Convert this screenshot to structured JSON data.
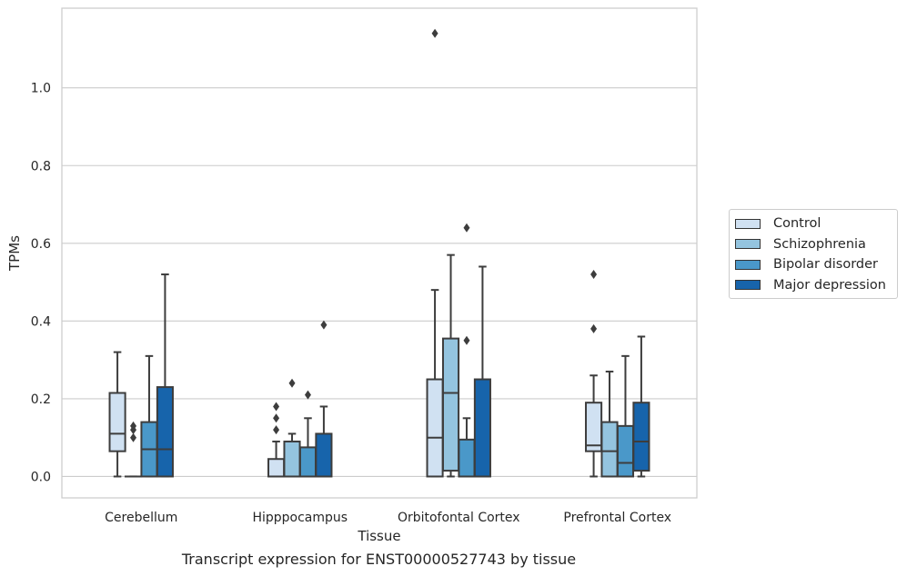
{
  "chart_data": {
    "type": "box",
    "xlabel": "Tissue",
    "ylabel": "TPMs",
    "caption": "Transcript expression for ENST00000527743 by tissue",
    "ylim": [
      -0.055,
      1.205
    ],
    "yticks": [
      0.0,
      0.2,
      0.4,
      0.6,
      0.8,
      1.0
    ],
    "ytick_labels": [
      "0.0",
      "0.2",
      "0.4",
      "0.6",
      "0.8",
      "1.0"
    ],
    "grid": true,
    "legend_position": "right",
    "categories": [
      "Cerebellum",
      "Hipppocampus",
      "Orbitofontal Cortex",
      "Prefrontal Cortex"
    ],
    "series": [
      {
        "name": "Control",
        "color": "#d0e1f2",
        "boxes": [
          {
            "q1": 0.065,
            "median": 0.11,
            "q3": 0.215,
            "whislo": 0.0,
            "whishi": 0.32,
            "fliers": []
          },
          {
            "q1": 0.0,
            "median": 0.0,
            "q3": 0.045,
            "whislo": 0.0,
            "whishi": 0.09,
            "fliers": [
              0.12,
              0.15,
              0.18
            ]
          },
          {
            "q1": 0.0,
            "median": 0.1,
            "q3": 0.25,
            "whislo": 0.0,
            "whishi": 0.48,
            "fliers": [
              1.14
            ]
          },
          {
            "q1": 0.065,
            "median": 0.08,
            "q3": 0.19,
            "whislo": 0.0,
            "whishi": 0.26,
            "fliers": [
              0.38,
              0.52
            ]
          }
        ]
      },
      {
        "name": "Schizophrenia",
        "color": "#94c4df",
        "boxes": [
          {
            "q1": 0.0,
            "median": 0.0,
            "q3": 0.0,
            "whislo": 0.0,
            "whishi": 0.0,
            "fliers": [
              0.1,
              0.12,
              0.13
            ]
          },
          {
            "q1": 0.0,
            "median": 0.0,
            "q3": 0.09,
            "whislo": 0.0,
            "whishi": 0.11,
            "fliers": [
              0.24
            ]
          },
          {
            "q1": 0.015,
            "median": 0.215,
            "q3": 0.355,
            "whislo": 0.0,
            "whishi": 0.57,
            "fliers": []
          },
          {
            "q1": 0.0,
            "median": 0.065,
            "q3": 0.14,
            "whislo": 0.0,
            "whishi": 0.27,
            "fliers": []
          }
        ]
      },
      {
        "name": "Bipolar disorder",
        "color": "#4a98c9",
        "boxes": [
          {
            "q1": 0.0,
            "median": 0.07,
            "q3": 0.14,
            "whislo": 0.0,
            "whishi": 0.31,
            "fliers": []
          },
          {
            "q1": 0.0,
            "median": 0.0,
            "q3": 0.075,
            "whislo": 0.0,
            "whishi": 0.15,
            "fliers": [
              0.21
            ]
          },
          {
            "q1": 0.0,
            "median": 0.0,
            "q3": 0.095,
            "whislo": 0.0,
            "whishi": 0.15,
            "fliers": [
              0.35,
              0.64
            ]
          },
          {
            "q1": 0.0,
            "median": 0.035,
            "q3": 0.13,
            "whislo": 0.0,
            "whishi": 0.31,
            "fliers": []
          }
        ]
      },
      {
        "name": "Major depression",
        "color": "#1764ab",
        "boxes": [
          {
            "q1": 0.0,
            "median": 0.07,
            "q3": 0.23,
            "whislo": 0.0,
            "whishi": 0.52,
            "fliers": []
          },
          {
            "q1": 0.0,
            "median": 0.0,
            "q3": 0.11,
            "whislo": 0.0,
            "whishi": 0.18,
            "fliers": [
              0.39
            ]
          },
          {
            "q1": 0.0,
            "median": 0.0,
            "q3": 0.25,
            "whislo": 0.0,
            "whishi": 0.54,
            "fliers": []
          },
          {
            "q1": 0.015,
            "median": 0.09,
            "q3": 0.19,
            "whislo": 0.0,
            "whishi": 0.36,
            "fliers": []
          }
        ]
      }
    ]
  }
}
